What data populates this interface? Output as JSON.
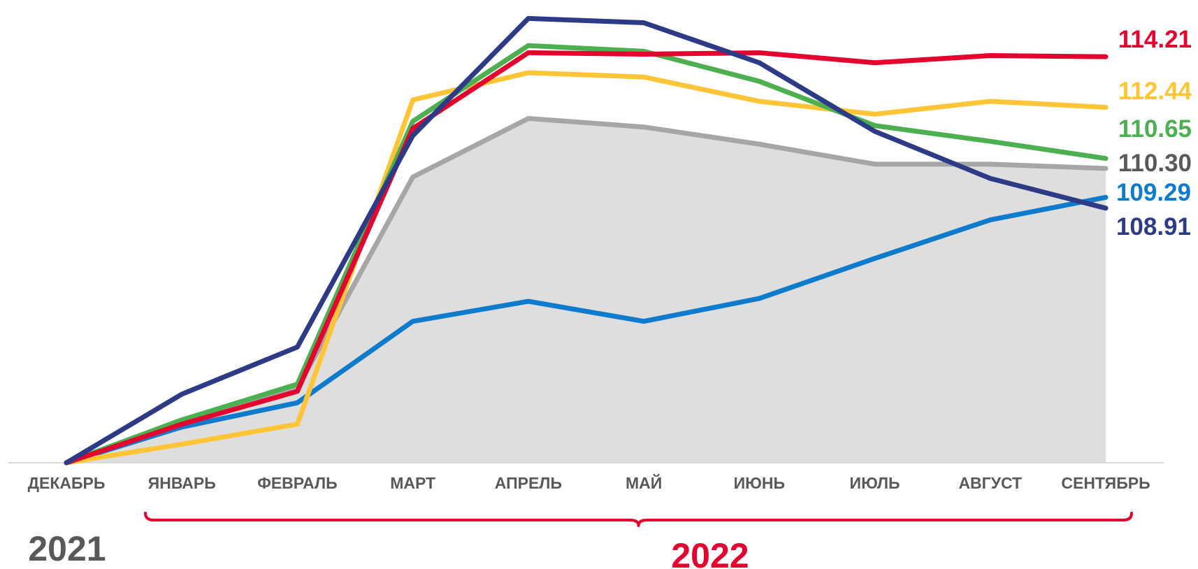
{
  "chart_data": {
    "type": "line",
    "categories": [
      "ДЕКАБРЬ",
      "ЯНВАРЬ",
      "ФЕВРАЛЬ",
      "МАРТ",
      "АПРЕЛЬ",
      "МАЙ",
      "ИЮНЬ",
      "ИЮЛЬ",
      "АВГУСТ",
      "СЕНТЯБРЬ"
    ],
    "ylim": [
      100,
      116.0
    ],
    "grid": false,
    "legend": "none",
    "area_series_index": 0,
    "series": [
      {
        "color": "#A6A6A6",
        "fill": "#DEDEDE",
        "values": [
          100.0,
          101.5,
          102.6,
          110.0,
          112.05,
          111.75,
          111.15,
          110.45,
          110.45,
          110.3
        ],
        "end_label": "110.30"
      },
      {
        "color": "#0F7BCC",
        "values": [
          100.0,
          101.25,
          102.1,
          104.95,
          105.65,
          104.95,
          105.75,
          107.15,
          108.5,
          109.29
        ],
        "end_label": "109.29"
      },
      {
        "color": "#FFC537",
        "values": [
          100.0,
          100.65,
          101.35,
          112.7,
          113.65,
          113.5,
          112.65,
          112.2,
          112.65,
          112.44
        ],
        "end_label": "112.44"
      },
      {
        "color": "#4CAF50",
        "values": [
          100.0,
          101.5,
          102.75,
          111.95,
          114.6,
          114.4,
          113.35,
          111.8,
          111.25,
          110.65
        ],
        "end_label": "110.65"
      },
      {
        "color": "#E4032E",
        "values": [
          100.0,
          101.35,
          102.5,
          111.7,
          114.35,
          114.3,
          114.35,
          114.0,
          114.25,
          114.21
        ],
        "end_label": "114.21"
      },
      {
        "color": "#2D3B87",
        "values": [
          100.0,
          102.4,
          104.05,
          111.45,
          115.55,
          115.4,
          114.0,
          111.6,
          109.95,
          108.91
        ],
        "end_label": "108.91"
      }
    ],
    "label_order": [
      "114.21",
      "112.44",
      "110.65",
      "110.30",
      "109.29",
      "108.91"
    ]
  },
  "years": {
    "left": "2021",
    "right": "2022"
  },
  "colors": {
    "bracket": "#E4032E",
    "axis": "#D9D9D9",
    "tick_text": "#595959",
    "year_left": "#595959",
    "year_right": "#E4032E"
  }
}
